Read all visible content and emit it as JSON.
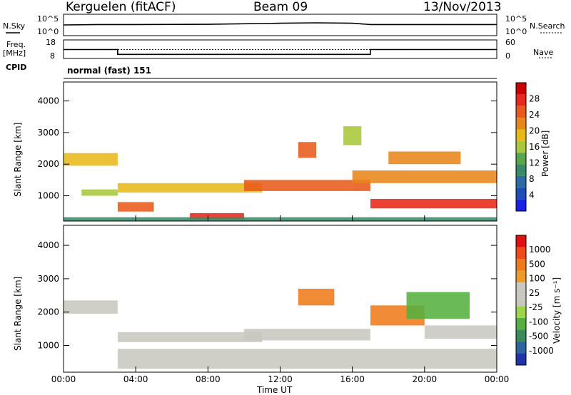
{
  "header": {
    "site": "Kerguelen (fitACF)",
    "beam": "Beam 09",
    "date": "13/Nov/2013"
  },
  "strip1": {
    "left_label": "N.Sky",
    "right_label": "N.Search",
    "left_ticks": [
      "10^5",
      "10^0"
    ],
    "right_ticks": [
      "10^5",
      "10^0"
    ]
  },
  "strip2": {
    "left_label_1": "Freq.",
    "left_label_2": "[MHz]",
    "right_label": "Nave",
    "left_ticks": [
      "18",
      "8"
    ],
    "right_ticks": [
      "60",
      "0"
    ],
    "cpid_label": "CPID",
    "cpid_text": "normal (fast) 151"
  },
  "colors": {
    "frame": "#000000"
  },
  "chart_data": [
    {
      "type": "line",
      "name": "noise",
      "series": [
        {
          "name": "N.Sky",
          "x": [
            0,
            2,
            4,
            8,
            12,
            14,
            16,
            17,
            20,
            24
          ],
          "y": [
            0.5,
            0.52,
            0.52,
            0.53,
            0.58,
            0.6,
            0.58,
            0.52,
            0.52,
            0.52
          ]
        }
      ]
    },
    {
      "type": "line",
      "name": "frequency",
      "series": [
        {
          "name": "Freq.",
          "x": [
            0,
            3,
            3,
            17,
            17,
            24
          ],
          "y": [
            12.8,
            12.8,
            10.2,
            10.2,
            12.8,
            12.8
          ]
        },
        {
          "name": "Nave",
          "x": [
            0,
            24
          ],
          "y": [
            29,
            29
          ]
        }
      ]
    },
    {
      "type": "heatmap",
      "name": "power",
      "ylabel": "Slant Range [km]",
      "xlabel": "Time UT",
      "xticks": [
        "00:00",
        "04:00",
        "08:00",
        "12:00",
        "16:00",
        "20:00",
        "00:00"
      ],
      "yticks": [
        "1000",
        "2000",
        "3000",
        "4000"
      ],
      "ylim": [
        200,
        4600
      ],
      "colorbar": {
        "label": "Power [dB]",
        "ticks": [
          "4",
          "8",
          "12",
          "16",
          "20",
          "24",
          "28"
        ],
        "colors": [
          "#1a22e6",
          "#1f4cb8",
          "#2e6aa8",
          "#3a8a6a",
          "#5aa54a",
          "#a8c83a",
          "#e8b81a",
          "#e8861a",
          "#e85a1a",
          "#e8281a",
          "#cc0000"
        ]
      },
      "bands": [
        {
          "t": [
            0,
            3
          ],
          "r": [
            1950,
            2350
          ],
          "level": 6
        },
        {
          "t": [
            1,
            3
          ],
          "r": [
            1000,
            1200
          ],
          "level": 5
        },
        {
          "t": [
            3,
            11
          ],
          "r": [
            1100,
            1400
          ],
          "level": 6
        },
        {
          "t": [
            10,
            17
          ],
          "r": [
            1150,
            1500
          ],
          "level": 8
        },
        {
          "t": [
            16,
            24
          ],
          "r": [
            1400,
            1800
          ],
          "level": 7
        },
        {
          "t": [
            17,
            24
          ],
          "r": [
            600,
            900
          ],
          "level": 9
        },
        {
          "t": [
            7,
            10
          ],
          "r": [
            250,
            450
          ],
          "level": 9
        },
        {
          "t": [
            3,
            5
          ],
          "r": [
            500,
            800
          ],
          "level": 8
        },
        {
          "t": [
            13,
            14
          ],
          "r": [
            2200,
            2700
          ],
          "level": 8
        },
        {
          "t": [
            15.5,
            16.5
          ],
          "r": [
            2600,
            3200
          ],
          "level": 5
        },
        {
          "t": [
            18,
            22
          ],
          "r": [
            2000,
            2400
          ],
          "level": 7
        },
        {
          "t": [
            0,
            24
          ],
          "r": [
            200,
            320
          ],
          "level": 3
        }
      ]
    },
    {
      "type": "heatmap",
      "name": "velocity",
      "ylabel": "Slant Range [km]",
      "xlabel": "Time UT",
      "xticks": [
        "00:00",
        "04:00",
        "08:00",
        "12:00",
        "16:00",
        "20:00",
        "00:00"
      ],
      "yticks": [
        "1000",
        "2000",
        "3000",
        "4000"
      ],
      "ylim": [
        200,
        4600
      ],
      "colorbar": {
        "label": "Velocity [m s⁻¹]",
        "ticks": [
          "1000",
          "500",
          "100",
          "25",
          "-25",
          "-100",
          "-500",
          "-1000"
        ],
        "colors": [
          "#2233aa",
          "#2f62a0",
          "#3a8a5a",
          "#55b040",
          "#9ed44a",
          "#c8c8c0",
          "#c8c8c0",
          "#ee9a2a",
          "#ee7a1a",
          "#ee4a1a",
          "#e01010"
        ]
      },
      "bands": [
        {
          "t": [
            0,
            3
          ],
          "r": [
            1950,
            2350
          ],
          "level": 5
        },
        {
          "t": [
            3,
            11
          ],
          "r": [
            1100,
            1400
          ],
          "level": 5
        },
        {
          "t": [
            3,
            24
          ],
          "r": [
            300,
            900
          ],
          "level": 5
        },
        {
          "t": [
            10,
            17
          ],
          "r": [
            1150,
            1500
          ],
          "level": 5
        },
        {
          "t": [
            17,
            20
          ],
          "r": [
            1600,
            2200
          ],
          "level": 8
        },
        {
          "t": [
            19,
            22.5
          ],
          "r": [
            1800,
            2600
          ],
          "level": 3
        },
        {
          "t": [
            13,
            15
          ],
          "r": [
            2200,
            2700
          ],
          "level": 8
        },
        {
          "t": [
            20,
            24
          ],
          "r": [
            1200,
            1600
          ],
          "level": 5
        }
      ]
    }
  ],
  "xlabel": "Time UT"
}
